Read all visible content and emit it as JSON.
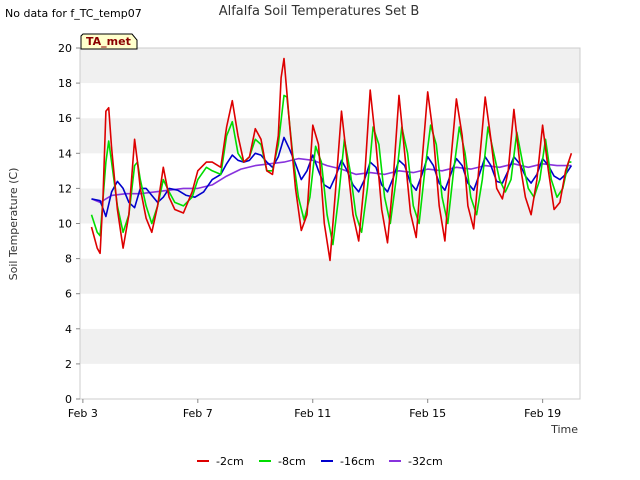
{
  "header": {
    "no_data_text": "No data for f_TC_temp07",
    "tag_label": "TA_met"
  },
  "chart_data": {
    "type": "line",
    "title": "Alfalfa Soil Temperatures Set B",
    "xlabel": "Time",
    "ylabel": "Soil Temperature (C)",
    "xlim": [
      2.9,
      20.3
    ],
    "ylim": [
      0,
      20
    ],
    "x_ticks": [
      3,
      7,
      11,
      15,
      19
    ],
    "x_tick_labels": [
      "Feb 3",
      "Feb 7",
      "Feb 11",
      "Feb 15",
      "Feb 19"
    ],
    "y_ticks": [
      0,
      2,
      4,
      6,
      8,
      10,
      12,
      14,
      16,
      18,
      20
    ],
    "grid": "horizontal-bands",
    "legend_position": "bottom",
    "series": [
      {
        "name": "-2cm",
        "color": "#dd0000",
        "x": [
          3.3,
          3.5,
          3.6,
          3.7,
          3.8,
          3.9,
          4.0,
          4.2,
          4.4,
          4.6,
          4.8,
          4.9,
          5.0,
          5.2,
          5.4,
          5.6,
          5.8,
          6.0,
          6.2,
          6.5,
          6.8,
          7.0,
          7.3,
          7.5,
          7.8,
          8.0,
          8.2,
          8.4,
          8.6,
          8.8,
          9.0,
          9.2,
          9.4,
          9.6,
          9.8,
          9.9,
          10.0,
          10.2,
          10.4,
          10.6,
          10.8,
          11.0,
          11.2,
          11.4,
          11.6,
          11.8,
          12.0,
          12.2,
          12.4,
          12.6,
          12.8,
          13.0,
          13.2,
          13.4,
          13.6,
          13.8,
          14.0,
          14.2,
          14.4,
          14.6,
          14.8,
          15.0,
          15.2,
          15.4,
          15.6,
          15.8,
          16.0,
          16.2,
          16.4,
          16.6,
          16.8,
          17.0,
          17.2,
          17.4,
          17.6,
          17.8,
          18.0,
          18.2,
          18.4,
          18.6,
          18.8,
          19.0,
          19.2,
          19.4,
          19.6,
          19.8,
          20.0
        ],
        "values": [
          9.8,
          8.6,
          8.3,
          11.5,
          16.4,
          16.6,
          14.3,
          10.8,
          8.6,
          10.5,
          14.8,
          13.5,
          12.0,
          10.3,
          9.5,
          11.0,
          13.2,
          11.5,
          10.8,
          10.6,
          11.8,
          13.0,
          13.5,
          13.5,
          13.2,
          15.5,
          17.0,
          15.0,
          13.5,
          13.8,
          15.4,
          14.8,
          13.0,
          12.8,
          15.0,
          18.3,
          19.4,
          15.5,
          12.0,
          9.6,
          10.5,
          15.6,
          14.5,
          10.0,
          7.9,
          12.0,
          16.4,
          13.5,
          10.5,
          9.0,
          12.5,
          17.6,
          14.5,
          10.8,
          8.9,
          12.5,
          17.3,
          14.0,
          10.6,
          9.2,
          13.5,
          17.5,
          15.0,
          11.0,
          9.0,
          13.5,
          17.1,
          15.0,
          11.0,
          9.7,
          13.5,
          17.2,
          14.8,
          12.0,
          11.4,
          13.0,
          16.5,
          13.5,
          11.5,
          10.5,
          12.5,
          15.6,
          13.0,
          10.8,
          11.2,
          13.0,
          14.0
        ]
      },
      {
        "name": "-8cm",
        "color": "#00dd00",
        "x": [
          3.3,
          3.5,
          3.6,
          3.8,
          3.9,
          4.0,
          4.2,
          4.4,
          4.6,
          4.8,
          4.9,
          5.0,
          5.2,
          5.4,
          5.6,
          5.8,
          6.0,
          6.2,
          6.5,
          6.8,
          7.0,
          7.3,
          7.5,
          7.8,
          8.0,
          8.2,
          8.4,
          8.6,
          8.8,
          9.0,
          9.2,
          9.4,
          9.6,
          9.8,
          10.0,
          10.1,
          10.3,
          10.5,
          10.7,
          10.9,
          11.1,
          11.3,
          11.5,
          11.7,
          11.9,
          12.1,
          12.3,
          12.5,
          12.7,
          12.9,
          13.1,
          13.3,
          13.5,
          13.7,
          13.9,
          14.1,
          14.3,
          14.5,
          14.7,
          14.9,
          15.1,
          15.3,
          15.5,
          15.7,
          15.9,
          16.1,
          16.3,
          16.5,
          16.7,
          16.9,
          17.1,
          17.3,
          17.5,
          17.7,
          17.9,
          18.1,
          18.3,
          18.5,
          18.7,
          18.9,
          19.1,
          19.3,
          19.5,
          19.7,
          19.9,
          20.0
        ],
        "values": [
          10.5,
          9.5,
          9.3,
          13.5,
          14.7,
          13.5,
          11.0,
          9.5,
          10.5,
          13.3,
          13.5,
          12.5,
          11.0,
          10.0,
          11.0,
          12.5,
          11.8,
          11.2,
          11.0,
          11.5,
          12.5,
          13.2,
          13.0,
          12.8,
          15.0,
          15.8,
          14.0,
          13.5,
          13.8,
          14.8,
          14.5,
          13.0,
          13.0,
          14.5,
          17.3,
          17.2,
          14.0,
          11.5,
          10.2,
          11.5,
          14.4,
          13.5,
          10.5,
          8.8,
          11.5,
          14.8,
          13.0,
          10.5,
          9.5,
          12.0,
          15.5,
          14.5,
          11.5,
          10.0,
          12.5,
          15.5,
          14.0,
          11.0,
          10.0,
          13.0,
          15.6,
          14.5,
          11.5,
          10.0,
          13.0,
          15.5,
          14.0,
          11.5,
          10.5,
          12.5,
          15.5,
          14.0,
          12.5,
          11.8,
          12.5,
          15.2,
          13.5,
          12.0,
          11.5,
          12.5,
          14.8,
          12.5,
          11.5,
          12.0,
          13.5,
          13.5
        ]
      },
      {
        "name": "-16cm",
        "color": "#0000cc",
        "x": [
          3.3,
          3.6,
          3.8,
          4.0,
          4.2,
          4.4,
          4.6,
          4.8,
          5.0,
          5.2,
          5.4,
          5.6,
          5.8,
          6.0,
          6.3,
          6.6,
          6.9,
          7.2,
          7.5,
          7.8,
          8.0,
          8.2,
          8.4,
          8.6,
          8.8,
          9.0,
          9.2,
          9.4,
          9.6,
          9.8,
          10.0,
          10.2,
          10.4,
          10.6,
          10.8,
          11.0,
          11.2,
          11.4,
          11.6,
          11.8,
          12.0,
          12.2,
          12.4,
          12.6,
          12.8,
          13.0,
          13.2,
          13.4,
          13.6,
          13.8,
          14.0,
          14.2,
          14.4,
          14.6,
          14.8,
          15.0,
          15.2,
          15.4,
          15.6,
          15.8,
          16.0,
          16.2,
          16.4,
          16.6,
          16.8,
          17.0,
          17.2,
          17.4,
          17.6,
          17.8,
          18.0,
          18.2,
          18.4,
          18.6,
          18.8,
          19.0,
          19.2,
          19.4,
          19.6,
          19.8,
          20.0
        ],
        "values": [
          11.4,
          11.3,
          10.4,
          11.8,
          12.4,
          12.0,
          11.2,
          10.9,
          12.0,
          12.0,
          11.6,
          11.2,
          11.5,
          12.0,
          11.9,
          11.6,
          11.5,
          11.8,
          12.5,
          12.8,
          13.4,
          13.9,
          13.6,
          13.5,
          13.6,
          14.0,
          13.9,
          13.5,
          13.2,
          13.8,
          14.9,
          14.2,
          13.4,
          12.5,
          13.0,
          13.9,
          13.0,
          12.2,
          12.0,
          12.7,
          13.6,
          13.0,
          12.2,
          11.8,
          12.5,
          13.5,
          13.2,
          12.2,
          11.8,
          12.6,
          13.6,
          13.3,
          12.3,
          11.9,
          12.8,
          13.8,
          13.3,
          12.3,
          11.9,
          12.8,
          13.7,
          13.3,
          12.3,
          11.9,
          12.8,
          13.8,
          13.3,
          12.4,
          12.3,
          13.0,
          13.8,
          13.4,
          12.7,
          12.3,
          12.8,
          13.7,
          13.3,
          12.7,
          12.5,
          12.8,
          13.3
        ]
      },
      {
        "name": "-32cm",
        "color": "#8833dd",
        "x": [
          3.3,
          3.6,
          4.0,
          4.5,
          5.0,
          5.5,
          6.0,
          6.5,
          7.0,
          7.5,
          8.0,
          8.5,
          9.0,
          9.5,
          10.0,
          10.5,
          11.0,
          11.5,
          12.0,
          12.5,
          13.0,
          13.5,
          14.0,
          14.5,
          15.0,
          15.5,
          16.0,
          16.5,
          17.0,
          17.5,
          18.0,
          18.5,
          19.0,
          19.5,
          20.0
        ],
        "values": [
          11.4,
          11.2,
          11.6,
          11.7,
          11.7,
          11.8,
          11.9,
          12.0,
          12.0,
          12.2,
          12.7,
          13.1,
          13.3,
          13.4,
          13.5,
          13.7,
          13.6,
          13.3,
          13.1,
          12.8,
          12.9,
          12.8,
          13.0,
          12.9,
          13.1,
          13.0,
          13.2,
          13.1,
          13.3,
          13.2,
          13.4,
          13.2,
          13.4,
          13.3,
          13.3
        ]
      }
    ]
  }
}
